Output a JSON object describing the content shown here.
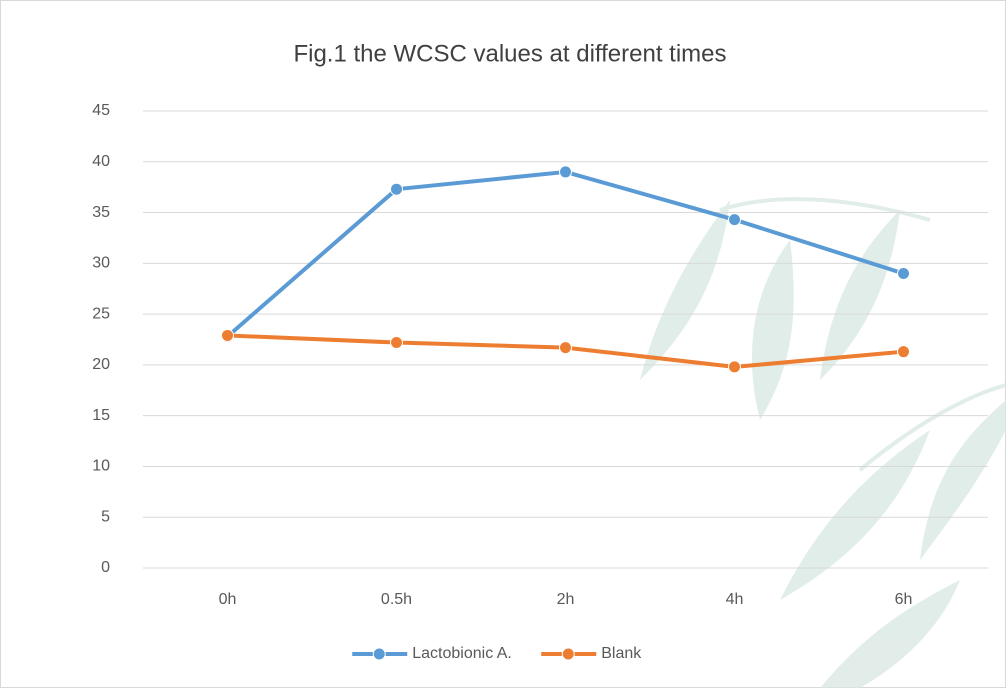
{
  "chart_data": {
    "type": "line",
    "title": "Fig.1 the WCSC values at different times",
    "categories": [
      "0h",
      "0.5h",
      "2h",
      "4h",
      "6h"
    ],
    "series": [
      {
        "name": "Lactobionic A.",
        "color": "#5b9bd5",
        "values": [
          22.8,
          37.3,
          39.0,
          34.3,
          29.0
        ]
      },
      {
        "name": "Blank",
        "color": "#ed7d31",
        "values": [
          22.9,
          22.2,
          21.7,
          19.8,
          21.3
        ]
      }
    ],
    "ylim": [
      0,
      45
    ],
    "yticks": [
      0,
      5,
      10,
      15,
      20,
      25,
      30,
      35,
      40,
      45
    ],
    "grid": true,
    "legend": "bottom"
  }
}
